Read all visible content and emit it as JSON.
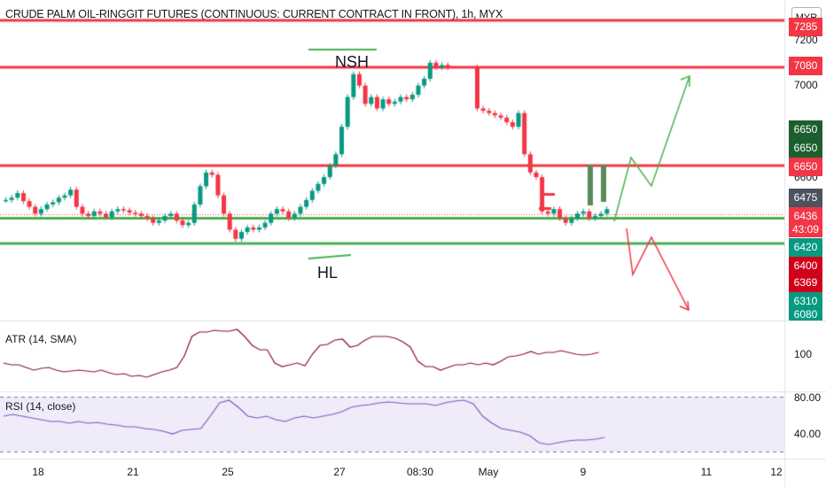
{
  "title": "CRUDE PALM OIL-RINGGIT FUTURES (CONTINUOUS: CURRENT CONTRACT IN FRONT), 1h, MYX",
  "currency": "MYR",
  "annotations": {
    "top": "NSH",
    "bottom": "HL"
  },
  "indicators": {
    "atr": "ATR (14, SMA)",
    "rsi": "RSI (14, close)"
  },
  "price_axis": [
    "7200",
    "7000",
    "6600"
  ],
  "tags": [
    {
      "text": "7285",
      "color": "#f23645"
    },
    {
      "text": "7080",
      "color": "#f23645"
    },
    {
      "text": "6650",
      "color": "#1e5e2e"
    },
    {
      "text": "6650",
      "color": "#1e5e2e"
    },
    {
      "text": "6650",
      "color": "#f23645"
    },
    {
      "text": "6475",
      "color": "#4c525e"
    },
    {
      "text": "6436",
      "color": "#f23645"
    },
    {
      "text": "43:09",
      "color": "#f23645"
    },
    {
      "text": "6420",
      "color": "#089981"
    },
    {
      "text": "6400",
      "color": "#d0021b"
    },
    {
      "text": "6369",
      "color": "#d0021b"
    },
    {
      "text": "6310",
      "color": "#089981"
    },
    {
      "text": "6080",
      "color": "#089981"
    }
  ],
  "atr_axis": "100",
  "rsi_axis": [
    "80.00",
    "40.00"
  ],
  "x_labels": [
    "18",
    "21",
    "25",
    "27",
    "08:30",
    "May",
    "9",
    "11",
    "12"
  ],
  "horizontal_levels": [
    {
      "price": 7285,
      "color": "#f23645"
    },
    {
      "price": 7080,
      "color": "#f23645"
    },
    {
      "price": 6650,
      "color": "#f23645"
    },
    {
      "price": 6420,
      "color": "#4caf50"
    },
    {
      "price": 6310,
      "color": "#4caf50"
    }
  ],
  "chart_data": {
    "type": "candlestick",
    "series_close": [
      6500,
      6510,
      6530,
      6495,
      6470,
      6440,
      6460,
      6480,
      6490,
      6510,
      6520,
      6545,
      6470,
      6440,
      6430,
      6450,
      6440,
      6425,
      6450,
      6460,
      6455,
      6445,
      6440,
      6430,
      6420,
      6400,
      6410,
      6430,
      6440,
      6410,
      6390,
      6400,
      6480,
      6560,
      6620,
      6610,
      6520,
      6440,
      6370,
      6330,
      6360,
      6380,
      6370,
      6380,
      6400,
      6440,
      6460,
      6450,
      6420,
      6440,
      6470,
      6500,
      6540,
      6570,
      6600,
      6650,
      6700,
      6820,
      6950,
      7050,
      7000,
      6920,
      6950,
      6900,
      6940,
      6920,
      6930,
      6950,
      6940,
      6960,
      7000,
      7030,
      7100,
      7080,
      7090,
      7080,
      null,
      null,
      null,
      null,
      6900,
      6890,
      6880,
      6870,
      6860,
      6840,
      6820,
      6880,
      6700,
      6620,
      6600,
      6450,
      6440,
      6460,
      6420,
      6400,
      6420,
      6440,
      6450,
      6420,
      6430,
      6440,
      6460
    ]
  }
}
